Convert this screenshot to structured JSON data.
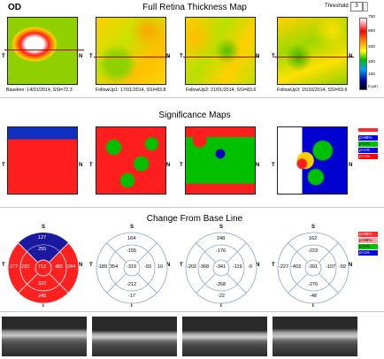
{
  "header": {
    "eye": "OD",
    "title": "Full Retina Thickness Map",
    "threshold_label": "Threshold",
    "threshold_value": "3"
  },
  "thickness_scale": {
    "labels": [
      "750",
      "600",
      "400",
      "200",
      "100",
      "0 μm"
    ],
    "gradient": [
      "#ffffff",
      "#ff0000",
      "#ffa500",
      "#ffff00",
      "#00c000",
      "#00a0ff",
      "#0000a0",
      "#000000"
    ]
  },
  "scans": [
    {
      "caption": "Baseline: 14/01/2014, SSI=72.3"
    },
    {
      "caption": "FollowUp1: 17/01/2014, SSI=83.8"
    },
    {
      "caption": "FollowUp2: 21/01/2014, SSI=83.6"
    },
    {
      "caption": "FollowUp3: 15/10/2014, SSI=59.9"
    }
  ],
  "axis_labels": {
    "top": "S",
    "bottom": "I",
    "left": "T",
    "right": "N"
  },
  "significance": {
    "title": "Significance Maps",
    "legend": [
      {
        "label": "p>95%",
        "color": "#ff2a2a"
      },
      {
        "label": "p<5%",
        "color": "#ffd100"
      },
      {
        "label": "p<1%",
        "color": "#ff0000"
      }
    ],
    "legend_right": [
      {
        "label": "p>95%",
        "color": "#0000ff",
        "text_color": "#ffffff"
      },
      {
        "label": "p<5%",
        "color": "#00c000",
        "text_color": "#000000"
      },
      {
        "label": "p<1%",
        "color": "#ff0000",
        "text_color": "#ffffff"
      }
    ]
  },
  "change": {
    "title": "Change From Base Line",
    "baseline_grid": {
      "s_outer": "127",
      "s_inner": "255",
      "t_outer": "277",
      "t_inner": "293",
      "center": "712",
      "n_inner": "485",
      "n_outer": "344",
      "i_inner": "322",
      "i_outer": "248"
    },
    "followups": [
      {
        "s_outer": "164",
        "s_inner": "-155",
        "t_outer": "-189",
        "t_inner": "354",
        "center": "-319",
        "n_inner": "-93",
        "n_outer": "10",
        "i_inner": "-212",
        "i_outer": "-17"
      },
      {
        "s_outer": "248",
        "s_inner": "-176",
        "t_outer": "-202",
        "t_inner": "-368",
        "center": "-341",
        "n_inner": "-119",
        "n_outer": "-9",
        "i_inner": "-268",
        "i_outer": "-22"
      },
      {
        "s_outer": "162",
        "s_inner": "-223",
        "t_outer": "-227",
        "t_inner": "-403",
        "center": "-391",
        "n_inner": "-197",
        "n_outer": "-59",
        "i_inner": "-276",
        "i_outer": "-48"
      }
    ],
    "legend": [
      {
        "label": "p>95%",
        "color": "#ff2a2a"
      },
      {
        "label": "p>95%",
        "color": "#ffa0a0"
      },
      {
        "label": "p<5%",
        "color": "#00c000"
      },
      {
        "label": "p<1%",
        "color": "#0000ff"
      }
    ]
  }
}
